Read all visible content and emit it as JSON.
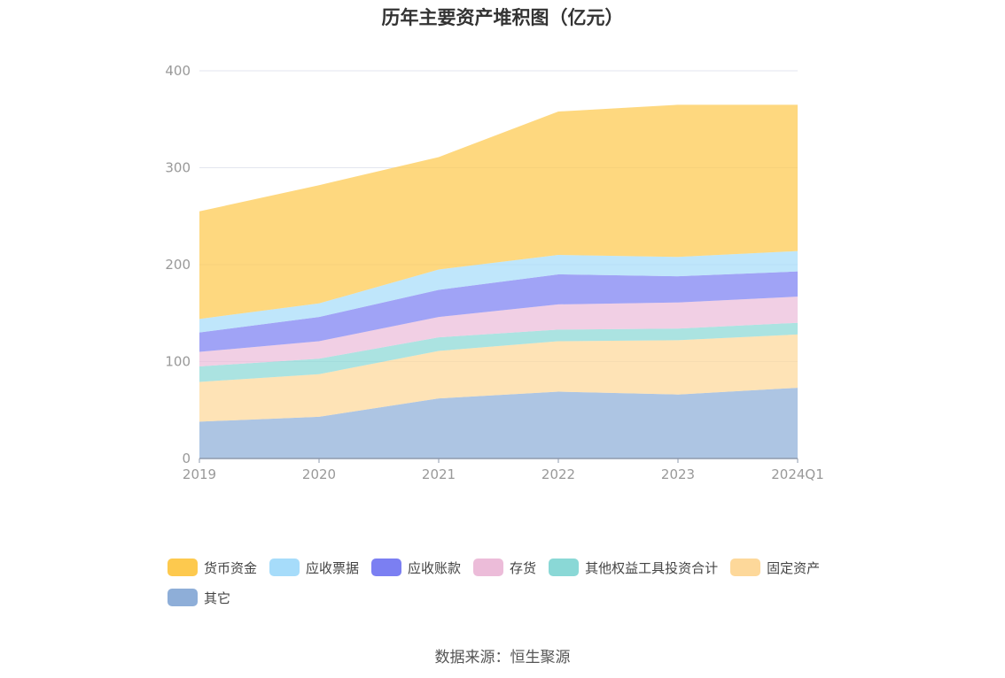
{
  "chart_data": {
    "type": "area",
    "stacked": true,
    "title": "历年主要资产堆积图（亿元）",
    "categories": [
      "2019",
      "2020",
      "2021",
      "2022",
      "2023",
      "2024Q1"
    ],
    "ylim": [
      0,
      400
    ],
    "yticks": [
      0,
      100,
      200,
      300,
      400
    ],
    "grid": true,
    "legend_position": "bottom",
    "series": [
      {
        "name": "其它",
        "color": "#8eaed8",
        "values": [
          38,
          43,
          62,
          69,
          66,
          73
        ]
      },
      {
        "name": "固定资产",
        "color": "#fdd89a",
        "values": [
          41,
          44,
          49,
          52,
          56,
          55
        ]
      },
      {
        "name": "其他权益工具投资合计",
        "color": "#8ad8d6",
        "values": [
          16,
          16,
          14,
          12,
          12,
          12
        ]
      },
      {
        "name": "存货",
        "color": "#ecbcd9",
        "values": [
          15,
          18,
          21,
          26,
          27,
          27
        ]
      },
      {
        "name": "应收账款",
        "color": "#7b7ff2",
        "values": [
          20,
          25,
          28,
          31,
          27,
          26
        ]
      },
      {
        "name": "应收票据",
        "color": "#a6dcfa",
        "values": [
          14,
          14,
          21,
          20,
          20,
          21
        ]
      },
      {
        "name": "货币资金",
        "color": "#fdc94e",
        "values": [
          111,
          122,
          116,
          148,
          157,
          151
        ]
      }
    ]
  },
  "source": "数据来源：恒生聚源"
}
